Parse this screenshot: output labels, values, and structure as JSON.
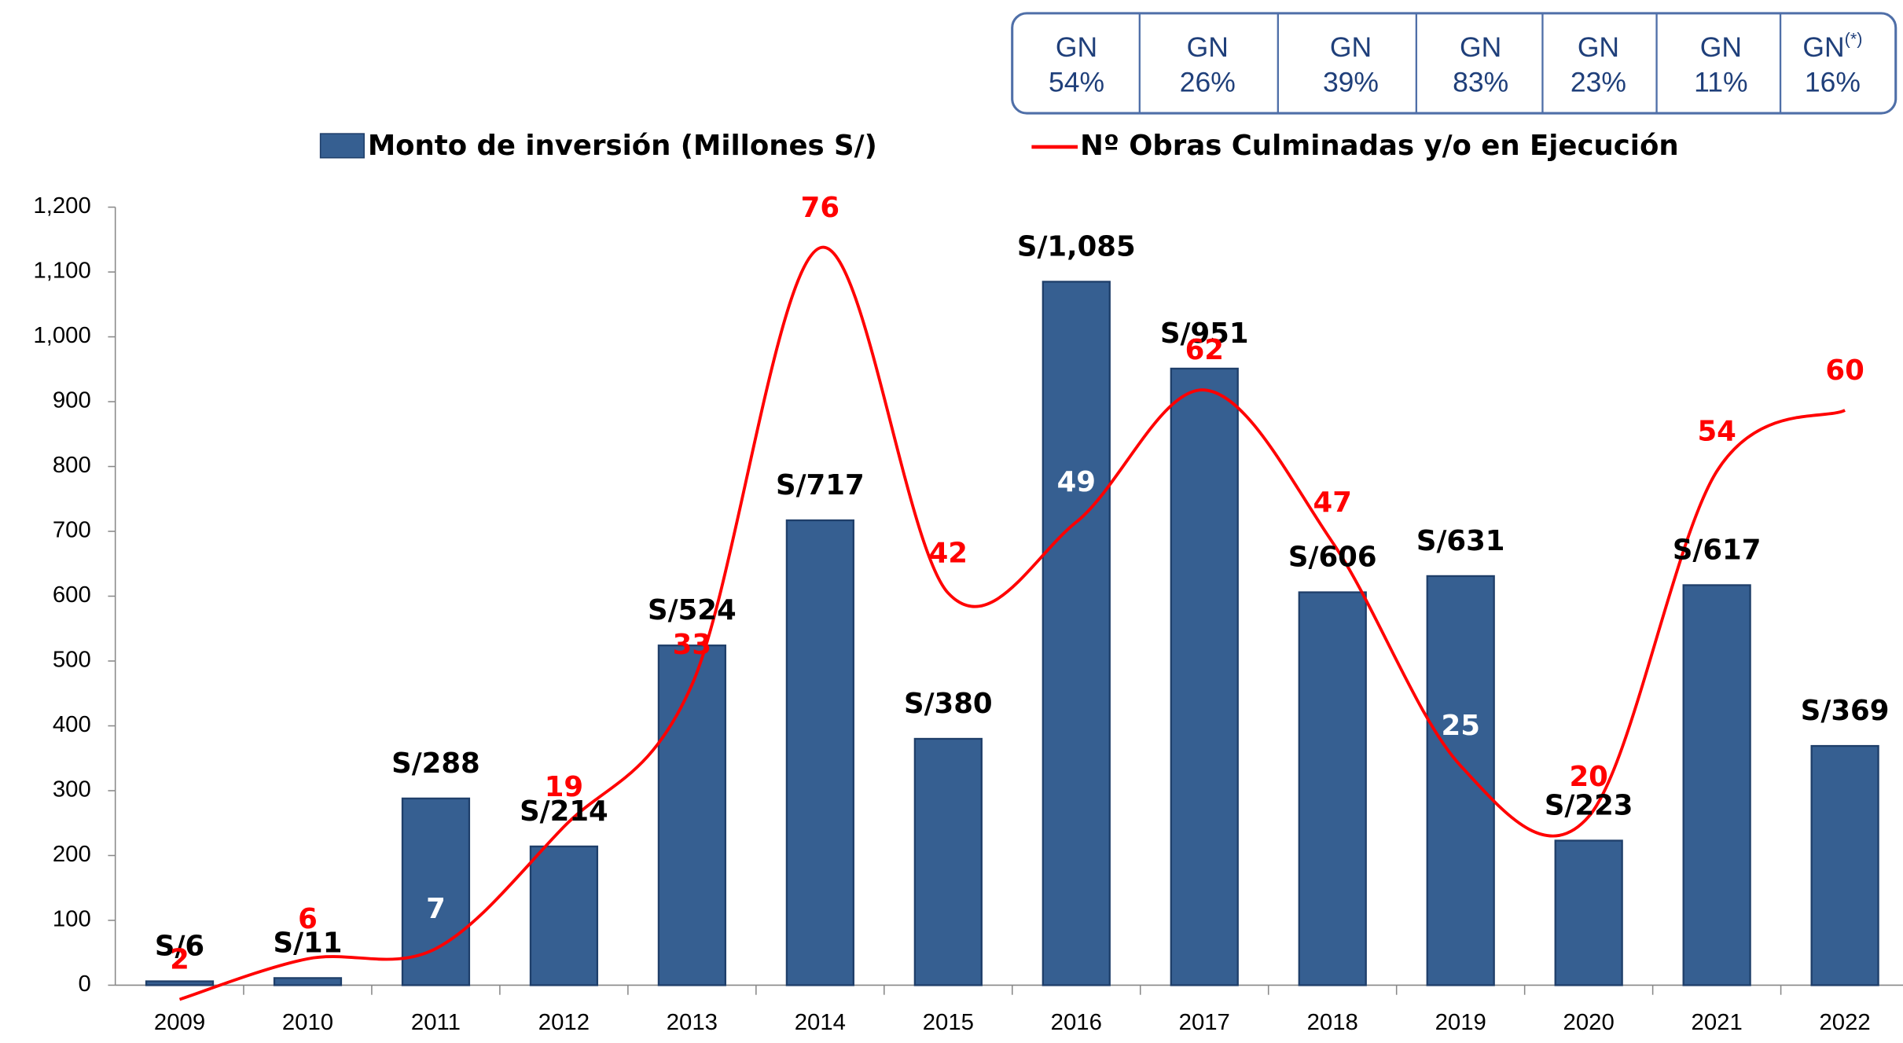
{
  "gn_table": [
    {
      "label": "GN",
      "pct": "54%"
    },
    {
      "label": "GN",
      "pct": "26%"
    },
    {
      "label": "GN",
      "pct": "39%"
    },
    {
      "label": "GN",
      "pct": "83%"
    },
    {
      "label": "GN",
      "pct": "23%"
    },
    {
      "label": "GN",
      "pct": "11%"
    },
    {
      "label": "GN",
      "sup": "(*)",
      "pct": "16%"
    }
  ],
  "chart_data": {
    "type": "bar",
    "categories": [
      "2009",
      "2010",
      "2011",
      "2012",
      "2013",
      "2014",
      "2015",
      "2016",
      "2017",
      "2018",
      "2019",
      "2020",
      "2021",
      "2022"
    ],
    "series": [
      {
        "name": "Monto de inversión (Millones S/)",
        "type": "bar",
        "color": "#365f91",
        "values": [
          6,
          11,
          288,
          214,
          524,
          717,
          380,
          1085,
          951,
          606,
          631,
          223,
          617,
          369
        ],
        "value_labels": [
          "S/6",
          "S/11",
          "S/288",
          "S/214",
          "S/524",
          "S/717",
          "S/380",
          "S/1,085",
          "S/951",
          "S/606",
          "S/631",
          "S/223",
          "S/617",
          "S/369"
        ]
      },
      {
        "name": "Nº Obras Culminadas y/o en Ejecución",
        "type": "line",
        "axis": "y2",
        "color": "#ff0000",
        "values": [
          2,
          6,
          7,
          19,
          33,
          76,
          42,
          49,
          62,
          47,
          25,
          20,
          54,
          60
        ]
      }
    ],
    "ylim": [
      0,
      1200
    ],
    "yticks": [
      0,
      {
        "value": 100,
        "label": "100"
      },
      {
        "value": 200,
        "label": "200"
      },
      {
        "value": 300,
        "label": "300"
      },
      {
        "value": 400,
        "label": "400"
      },
      {
        "value": 500,
        "label": "500"
      },
      {
        "value": 600,
        "label": "600"
      },
      {
        "value": 700,
        "label": "700"
      },
      {
        "value": 800,
        "label": "800"
      },
      {
        "value": 900,
        "label": "900"
      },
      {
        "value": 1000,
        "label": "1,000"
      },
      {
        "value": 1100,
        "label": "1,100"
      },
      {
        "value": 1200,
        "label": "1,200"
      }
    ],
    "y2lim": [
      3.4,
      80
    ],
    "grid": false
  }
}
